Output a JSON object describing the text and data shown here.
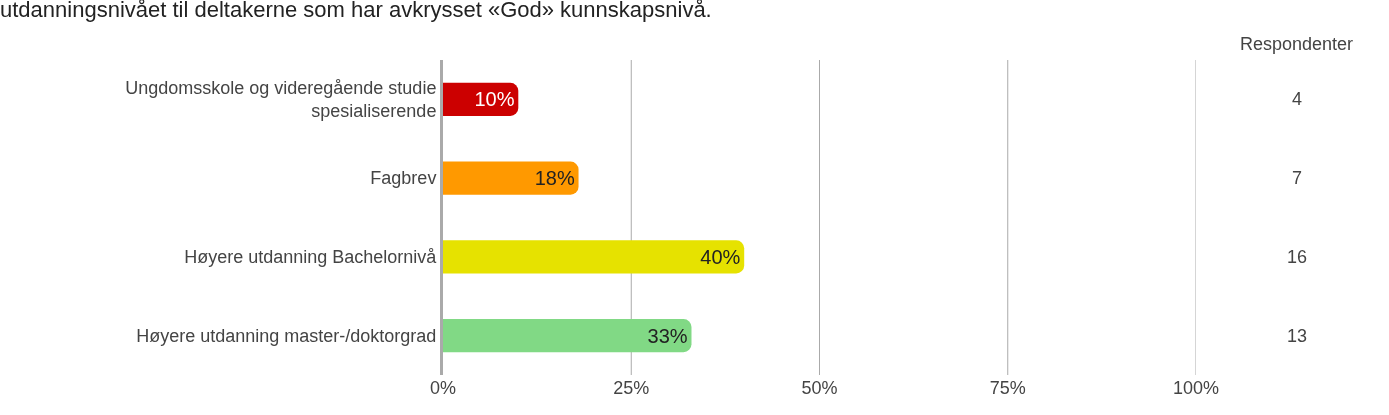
{
  "chart_data": {
    "type": "bar",
    "orientation": "horizontal",
    "title": "utdanningsnivået til deltakerne som har avkrysset «God» kunnskapsnivå.",
    "categories": [
      "Ungdomsskole og videregående studie\nspesialiserende",
      "Fagbrev",
      "Høyere utdanning Bachelornivå",
      "Høyere utdanning master-/doktorgrad"
    ],
    "values": [
      10,
      18,
      40,
      33
    ],
    "colors": [
      "#cc0000",
      "#ff9900",
      "#e6e200",
      "#81d985"
    ],
    "value_labels": [
      "10%",
      "18%",
      "40%",
      "33%"
    ],
    "xlim": [
      0,
      100
    ],
    "xticks": [
      {
        "value": 0,
        "label": "0%"
      },
      {
        "value": 25,
        "label": "25%"
      },
      {
        "value": 50,
        "label": "50%"
      },
      {
        "value": 75,
        "label": "75%"
      },
      {
        "value": 100,
        "label": "100%"
      }
    ],
    "grid": "x",
    "legend": false,
    "annotations": [
      "Respondenter",
      "4",
      "7",
      "16",
      "13"
    ]
  }
}
